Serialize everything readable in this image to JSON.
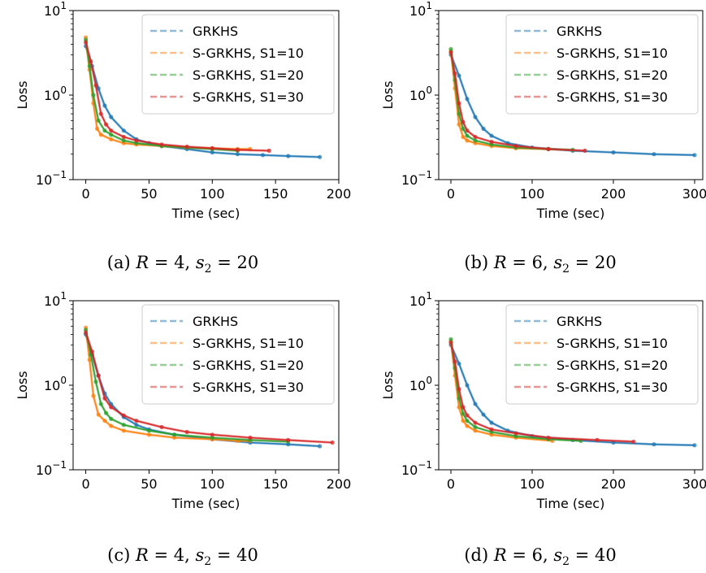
{
  "colors": {
    "GRKHS": "#1f77b4",
    "S-GRKHS, S1=10": "#ff7f0e",
    "S-GRKHS, S1=20": "#2ca02c",
    "S-GRKHS, S1=30": "#d62728"
  },
  "chart_data": [
    {
      "type": "line",
      "caption": "(a) R = 4, s2 = 20",
      "xlabel": "Time (sec)",
      "ylabel": "Loss",
      "yscale": "log",
      "xlim": [
        -10,
        200
      ],
      "ylim": [
        0.1,
        10
      ],
      "xticks": [
        0,
        50,
        100,
        150,
        200
      ],
      "yticks": [
        {
          "v": 0.1,
          "base": "10",
          "exp": "−1"
        },
        {
          "v": 1,
          "base": "10",
          "exp": "0"
        },
        {
          "v": 10,
          "base": "10",
          "exp": "1"
        }
      ],
      "legend": {
        "position": "upper-right",
        "entries": [
          "GRKHS",
          "S-GRKHS, S1=10",
          "S-GRKHS, S1=20",
          "S-GRKHS, S1=30"
        ]
      },
      "series": [
        {
          "name": "GRKHS",
          "x": [
            0,
            5,
            10,
            15,
            20,
            30,
            40,
            50,
            60,
            80,
            100,
            120,
            140,
            160,
            185
          ],
          "y": [
            3.8,
            2.2,
            1.2,
            0.75,
            0.55,
            0.38,
            0.3,
            0.27,
            0.25,
            0.23,
            0.21,
            0.2,
            0.195,
            0.19,
            0.185
          ]
        },
        {
          "name": "S-GRKHS, S1=10",
          "x": [
            0,
            3,
            6,
            9,
            12,
            20,
            30,
            40,
            60,
            80,
            100,
            120,
            130
          ],
          "y": [
            4.8,
            2.0,
            0.8,
            0.4,
            0.34,
            0.3,
            0.27,
            0.26,
            0.25,
            0.24,
            0.235,
            0.23,
            0.23
          ]
        },
        {
          "name": "S-GRKHS, S1=20",
          "x": [
            0,
            3,
            6,
            10,
            15,
            20,
            30,
            40,
            60,
            80,
            100,
            120
          ],
          "y": [
            4.5,
            2.2,
            1.0,
            0.5,
            0.38,
            0.34,
            0.29,
            0.27,
            0.25,
            0.24,
            0.23,
            0.22
          ]
        },
        {
          "name": "S-GRKHS, S1=30",
          "x": [
            0,
            4,
            8,
            12,
            16,
            20,
            30,
            40,
            60,
            80,
            100,
            120,
            145
          ],
          "y": [
            4.2,
            2.5,
            1.3,
            0.6,
            0.45,
            0.38,
            0.32,
            0.29,
            0.26,
            0.245,
            0.235,
            0.225,
            0.22
          ]
        }
      ]
    },
    {
      "type": "line",
      "caption": "(b) R = 6, s2 = 20",
      "xlabel": "Time (sec)",
      "ylabel": "Loss",
      "yscale": "log",
      "xlim": [
        -15,
        310
      ],
      "ylim": [
        0.1,
        10
      ],
      "xticks": [
        0,
        100,
        200,
        300
      ],
      "yticks": [
        {
          "v": 0.1,
          "base": "10",
          "exp": "−1"
        },
        {
          "v": 1,
          "base": "10",
          "exp": "0"
        },
        {
          "v": 10,
          "base": "10",
          "exp": "1"
        }
      ],
      "legend": {
        "position": "upper-right",
        "entries": [
          "GRKHS",
          "S-GRKHS, S1=10",
          "S-GRKHS, S1=20",
          "S-GRKHS, S1=30"
        ]
      },
      "series": [
        {
          "name": "GRKHS",
          "x": [
            0,
            10,
            20,
            30,
            40,
            50,
            70,
            100,
            150,
            200,
            250,
            300
          ],
          "y": [
            3.0,
            1.7,
            0.9,
            0.55,
            0.4,
            0.33,
            0.27,
            0.24,
            0.22,
            0.21,
            0.2,
            0.195
          ]
        },
        {
          "name": "S-GRKHS, S1=10",
          "x": [
            0,
            5,
            10,
            15,
            20,
            30,
            50,
            80,
            120
          ],
          "y": [
            3.3,
            1.2,
            0.45,
            0.32,
            0.29,
            0.27,
            0.25,
            0.235,
            0.23
          ]
        },
        {
          "name": "S-GRKHS, S1=20",
          "x": [
            0,
            5,
            10,
            15,
            20,
            30,
            50,
            80,
            120,
            150
          ],
          "y": [
            3.5,
            1.5,
            0.6,
            0.4,
            0.33,
            0.29,
            0.26,
            0.24,
            0.23,
            0.225
          ]
        },
        {
          "name": "S-GRKHS, S1=30",
          "x": [
            0,
            5,
            10,
            15,
            20,
            30,
            50,
            80,
            120,
            165
          ],
          "y": [
            3.2,
            1.8,
            0.8,
            0.48,
            0.38,
            0.32,
            0.28,
            0.25,
            0.23,
            0.22
          ]
        }
      ]
    },
    {
      "type": "line",
      "caption": "(c) R = 4, s2 = 40",
      "xlabel": "Time (sec)",
      "ylabel": "Loss",
      "yscale": "log",
      "xlim": [
        -10,
        200
      ],
      "ylim": [
        0.1,
        10
      ],
      "xticks": [
        0,
        50,
        100,
        150,
        200
      ],
      "yticks": [
        {
          "v": 0.1,
          "base": "10",
          "exp": "−1"
        },
        {
          "v": 1,
          "base": "10",
          "exp": "0"
        },
        {
          "v": 10,
          "base": "10",
          "exp": "1"
        }
      ],
      "legend": {
        "position": "upper-right",
        "entries": [
          "GRKHS",
          "S-GRKHS, S1=10",
          "S-GRKHS, S1=20",
          "S-GRKHS, S1=30"
        ]
      },
      "series": [
        {
          "name": "GRKHS",
          "x": [
            0,
            5,
            10,
            15,
            20,
            30,
            40,
            50,
            70,
            100,
            130,
            160,
            185
          ],
          "y": [
            4.0,
            2.3,
            1.3,
            0.8,
            0.6,
            0.42,
            0.34,
            0.3,
            0.26,
            0.23,
            0.21,
            0.2,
            0.19
          ]
        },
        {
          "name": "S-GRKHS, S1=10",
          "x": [
            0,
            3,
            6,
            10,
            15,
            20,
            30,
            50,
            70,
            100,
            120,
            130
          ],
          "y": [
            4.8,
            2.0,
            0.75,
            0.45,
            0.38,
            0.33,
            0.29,
            0.26,
            0.24,
            0.23,
            0.22,
            0.22
          ]
        },
        {
          "name": "S-GRKHS, S1=20",
          "x": [
            0,
            4,
            8,
            12,
            16,
            20,
            30,
            50,
            70,
            100,
            130,
            160
          ],
          "y": [
            4.5,
            2.3,
            1.1,
            0.6,
            0.47,
            0.4,
            0.34,
            0.29,
            0.26,
            0.24,
            0.225,
            0.215
          ]
        },
        {
          "name": "S-GRKHS, S1=30",
          "x": [
            0,
            5,
            10,
            15,
            20,
            30,
            40,
            60,
            80,
            100,
            130,
            160,
            195
          ],
          "y": [
            4.2,
            2.5,
            1.3,
            0.7,
            0.55,
            0.44,
            0.38,
            0.32,
            0.28,
            0.26,
            0.24,
            0.225,
            0.21
          ]
        }
      ]
    },
    {
      "type": "line",
      "caption": "(d) R = 6, s2 = 40",
      "xlabel": "Time (sec)",
      "ylabel": "Loss",
      "yscale": "log",
      "xlim": [
        -15,
        310
      ],
      "ylim": [
        0.1,
        10
      ],
      "xticks": [
        0,
        100,
        200,
        300
      ],
      "yticks": [
        {
          "v": 0.1,
          "base": "10",
          "exp": "−1"
        },
        {
          "v": 1,
          "base": "10",
          "exp": "0"
        },
        {
          "v": 10,
          "base": "10",
          "exp": "1"
        }
      ],
      "legend": {
        "position": "upper-right",
        "entries": [
          "GRKHS",
          "S-GRKHS, S1=10",
          "S-GRKHS, S1=20",
          "S-GRKHS, S1=30"
        ]
      },
      "series": [
        {
          "name": "GRKHS",
          "x": [
            0,
            10,
            20,
            30,
            40,
            50,
            70,
            100,
            150,
            200,
            250,
            300
          ],
          "y": [
            3.0,
            1.8,
            1.0,
            0.6,
            0.45,
            0.36,
            0.29,
            0.25,
            0.225,
            0.21,
            0.2,
            0.195
          ]
        },
        {
          "name": "S-GRKHS, S1=10",
          "x": [
            0,
            5,
            10,
            15,
            20,
            30,
            50,
            80,
            125
          ],
          "y": [
            3.3,
            1.3,
            0.55,
            0.38,
            0.33,
            0.29,
            0.26,
            0.24,
            0.22
          ]
        },
        {
          "name": "S-GRKHS, S1=20",
          "x": [
            0,
            5,
            10,
            15,
            20,
            30,
            50,
            80,
            120,
            160
          ],
          "y": [
            3.5,
            1.6,
            0.7,
            0.46,
            0.38,
            0.32,
            0.28,
            0.25,
            0.23,
            0.22
          ]
        },
        {
          "name": "S-GRKHS, S1=30",
          "x": [
            0,
            5,
            10,
            15,
            20,
            30,
            50,
            80,
            120,
            180,
            225
          ],
          "y": [
            3.2,
            1.9,
            0.9,
            0.55,
            0.44,
            0.36,
            0.3,
            0.27,
            0.24,
            0.225,
            0.215
          ]
        }
      ]
    }
  ]
}
